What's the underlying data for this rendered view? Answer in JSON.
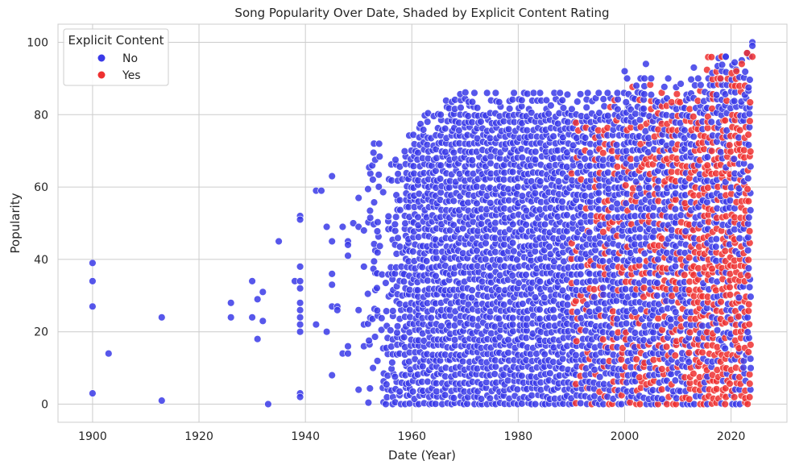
{
  "chart_data": {
    "type": "scatter",
    "title": "Song Popularity Over Date, Shaded by Explicit Content Rating",
    "xlabel": "Date (Year)",
    "ylabel": "Popularity",
    "xlim": [
      1893.5,
      2030.5
    ],
    "ylim": [
      -5,
      105
    ],
    "x_ticks": [
      1900,
      1920,
      1940,
      1960,
      1980,
      2000,
      2020
    ],
    "y_ticks": [
      0,
      20,
      40,
      60,
      80,
      100
    ],
    "grid": true,
    "legend": {
      "title": "Explicit Content",
      "placement": "top-left",
      "entries": [
        {
          "label": "No",
          "color": "#3a3ae8"
        },
        {
          "label": "Yes",
          "color": "#ee3030"
        }
      ]
    },
    "series": [
      {
        "name": "No",
        "color": "#3a3ae8",
        "sparse_points": [
          [
            1900,
            39
          ],
          [
            1900,
            34
          ],
          [
            1900,
            27
          ],
          [
            1900,
            3
          ],
          [
            1903,
            14
          ],
          [
            1913,
            24
          ],
          [
            1913,
            1
          ],
          [
            1926,
            28
          ],
          [
            1926,
            24
          ],
          [
            1930,
            34
          ],
          [
            1930,
            24
          ],
          [
            1931,
            29
          ],
          [
            1931,
            18
          ],
          [
            1932,
            31
          ],
          [
            1932,
            23
          ],
          [
            1933,
            0
          ],
          [
            1935,
            45
          ],
          [
            1938,
            34
          ],
          [
            1939,
            52
          ],
          [
            1939,
            51
          ],
          [
            1939,
            38
          ],
          [
            1939,
            34
          ],
          [
            1939,
            32
          ],
          [
            1939,
            28
          ],
          [
            1939,
            26
          ],
          [
            1939,
            24
          ],
          [
            1939,
            22
          ],
          [
            1939,
            20
          ],
          [
            1939,
            3
          ],
          [
            1939,
            2
          ],
          [
            1942,
            59
          ],
          [
            1942,
            22
          ],
          [
            1943,
            59
          ],
          [
            1944,
            49
          ],
          [
            1944,
            20
          ],
          [
            1945,
            63
          ],
          [
            1945,
            45
          ],
          [
            1945,
            36
          ],
          [
            1945,
            33
          ],
          [
            1945,
            27
          ],
          [
            1945,
            8
          ],
          [
            1946,
            27
          ],
          [
            1946,
            26
          ],
          [
            1947,
            14
          ],
          [
            1947,
            49
          ],
          [
            1948,
            45
          ],
          [
            1948,
            44
          ],
          [
            1948,
            41
          ],
          [
            1948,
            16
          ],
          [
            1948,
            14
          ],
          [
            1949,
            50
          ],
          [
            1950,
            57
          ],
          [
            1950,
            49
          ],
          [
            1950,
            26
          ],
          [
            1950,
            4
          ],
          [
            1951,
            48
          ],
          [
            1951,
            38
          ],
          [
            1951,
            22
          ],
          [
            1951,
            16
          ]
        ],
        "dense_region": {
          "x_range": [
            1952,
            2024
          ],
          "y_range": [
            0,
            100
          ]
        }
      },
      {
        "name": "Yes",
        "color": "#ee3030",
        "dense_region": {
          "x_range": [
            1990,
            2024
          ],
          "y_range": [
            0,
            97
          ]
        }
      }
    ]
  }
}
